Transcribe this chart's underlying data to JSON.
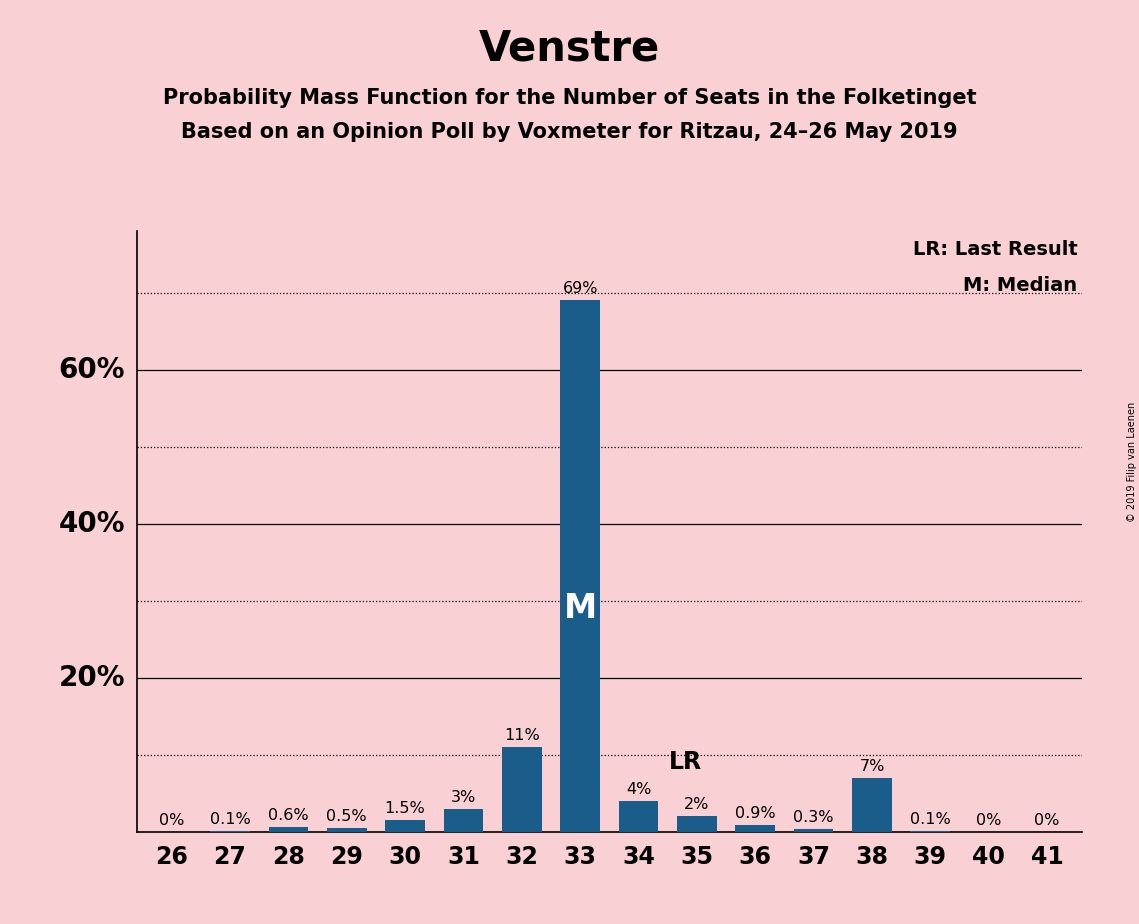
{
  "title": "Venstre",
  "subtitle1": "Probability Mass Function for the Number of Seats in the Folketinget",
  "subtitle2": "Based on an Opinion Poll by Voxmeter for Ritzau, 24–26 May 2019",
  "copyright": "© 2019 Filip van Laenen",
  "categories": [
    26,
    27,
    28,
    29,
    30,
    31,
    32,
    33,
    34,
    35,
    36,
    37,
    38,
    39,
    40,
    41
  ],
  "values": [
    0.0,
    0.1,
    0.6,
    0.5,
    1.5,
    3.0,
    11.0,
    69.0,
    4.0,
    2.0,
    0.9,
    0.3,
    7.0,
    0.1,
    0.0,
    0.0
  ],
  "labels": [
    "0%",
    "0.1%",
    "0.6%",
    "0.5%",
    "1.5%",
    "3%",
    "11%",
    "69%",
    "4%",
    "2%",
    "0.9%",
    "0.3%",
    "7%",
    "0.1%",
    "0%",
    "0%"
  ],
  "bar_color": "#1a5c8a",
  "background_color": "#f9d0d4",
  "median_seat": 33,
  "last_result_seat": 34,
  "legend_lr": "LR: Last Result",
  "legend_m": "M: Median",
  "yticks_solid": [
    20,
    40,
    60
  ],
  "yticks_dotted": [
    10,
    30,
    50,
    70
  ],
  "ytick_labels_map": {
    "20": "20%",
    "40": "40%",
    "60": "60%"
  },
  "ylim": [
    0,
    78
  ],
  "title_fontsize": 30,
  "subtitle_fontsize": 15,
  "bar_label_fontsize": 11.5,
  "axis_label_fontsize": 17,
  "ytick_fontsize": 20,
  "median_label_fontsize": 24,
  "lr_label_fontsize": 17,
  "legend_fontsize": 14
}
